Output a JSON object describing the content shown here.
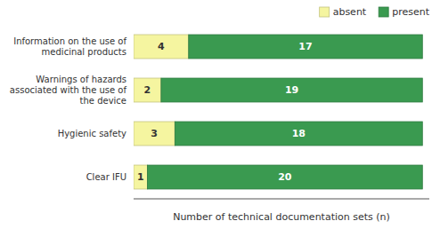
{
  "chart_data": {
    "type": "bar",
    "orientation": "horizontal",
    "stacked": true,
    "categories": [
      "Clear IFU",
      "Hygienic safety",
      "Warnings of hazards\nassociated with the use of\nthe device",
      "Information on the use of\nmedicinal products"
    ],
    "series": [
      {
        "name": "absent",
        "color": "#f5f5a0",
        "values": [
          1,
          3,
          2,
          4
        ]
      },
      {
        "name": "present",
        "color": "#3a9a50",
        "values": [
          20,
          18,
          19,
          17
        ]
      }
    ],
    "xlabel": "Number of technical documentation sets (n)",
    "xlim": [
      0,
      21.5
    ],
    "xticks": [],
    "data_labels": true,
    "tick_labels": "y",
    "legend": "upper right",
    "grid": false
  }
}
